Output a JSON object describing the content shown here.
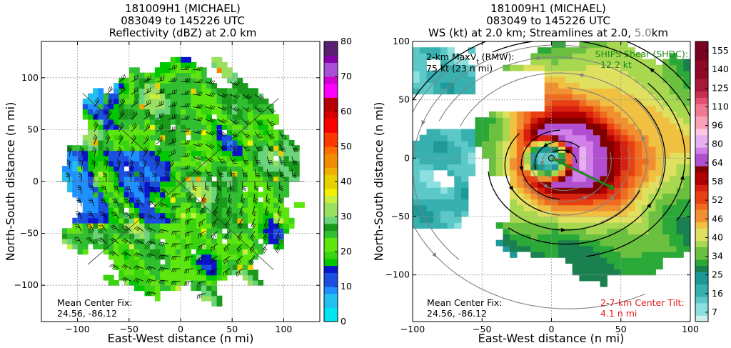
{
  "chart_data": [
    {
      "type": "heatmap",
      "panel": "left",
      "title_lines": [
        "181009H1 (MICHAEL)",
        "083049 to 145226 UTC",
        "Reflectivity (dBZ) at 2.0 km"
      ],
      "xlabel": "East-West distance (n mi)",
      "ylabel": "North-South distance (n mi)",
      "xlim": [
        -135,
        135
      ],
      "ylim": [
        -135,
        135
      ],
      "xticks": [
        -100,
        -50,
        0,
        50,
        100
      ],
      "yticks": [
        -100,
        -50,
        0,
        50,
        100
      ],
      "grid": true,
      "colorbar": {
        "ticks": [
          0,
          10,
          20,
          30,
          40,
          50,
          60,
          70,
          80
        ],
        "range": [
          0,
          80
        ]
      },
      "overlay": "wind barbs and radial flight legs",
      "annotations": {
        "fix_label": "Mean Center Fix:",
        "fix_value": "24.56, -86.12"
      },
      "radar_echo_extent_nmi": 125
    },
    {
      "type": "heatmap",
      "panel": "right",
      "title_lines": [
        "181009H1 (MICHAEL)",
        "083049 to 145226 UTC"
      ],
      "title_line3_main": "WS (kt) at 2.0 km; Streamlines at 2.0, ",
      "title_line3_dim": "5.0",
      "title_line3_end": "km",
      "xlabel": "East-West distance (n mi)",
      "ylabel": "North-South distance (n mi)",
      "xlim": [
        -100,
        100
      ],
      "ylim": [
        -140,
        100
      ],
      "xticks": [
        -100,
        -50,
        0,
        50,
        100
      ],
      "yticks": [
        -100,
        -50,
        0,
        50,
        100
      ],
      "grid": true,
      "colorbar": {
        "ticks": [
          7,
          16,
          25,
          34,
          40,
          46,
          52,
          58,
          64,
          80,
          96,
          110,
          125,
          140,
          155
        ]
      },
      "annotations": {
        "maxvt_label": "2-km MaxV",
        "maxvt_sub": "t",
        "maxvt_suffix": " (RMW):",
        "maxvt_value": "75 kt (23 n mi)",
        "shear_label": "SHIPS Shear (SHDC):",
        "shear_value": "12.2 kt",
        "fix_label": "Mean Center Fix:",
        "fix_value": "24.56, -86.12",
        "tilt_label": "2-7-km Center Tilt:",
        "tilt_value": "4.1 n mi"
      },
      "max_wind_kt": 75,
      "rmw_nmi": 23,
      "shear_kt": 12.2,
      "tilt_nmi": 4.1,
      "shear_direction_deg": 120
    }
  ],
  "colors": {
    "text": "#000000",
    "shear": "#1a8a1a",
    "tilt": "#e02020",
    "dim": "#808080",
    "grid": "#9a9a9a"
  }
}
